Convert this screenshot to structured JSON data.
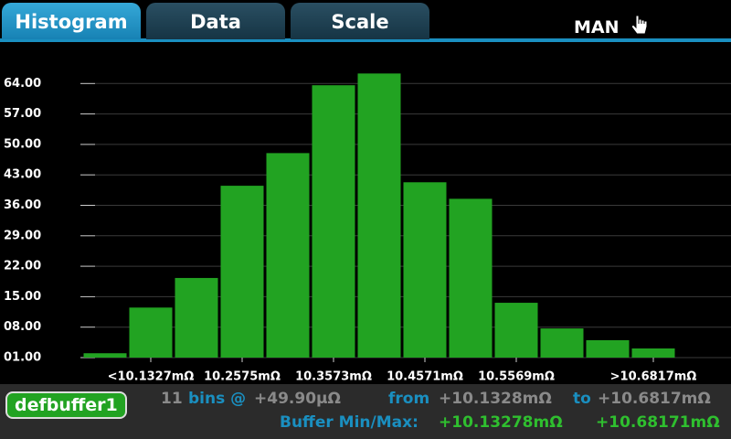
{
  "tabs": [
    "Histogram",
    "Data",
    "Scale"
  ],
  "mode": "MAN",
  "chart_data": {
    "type": "bar",
    "categories": [
      null,
      "<10.1327mΩ",
      null,
      "10.2575mΩ",
      null,
      "10.3573mΩ",
      null,
      "10.4571mΩ",
      null,
      "10.5569mΩ",
      null,
      null,
      ">10.6817mΩ"
    ],
    "values": [
      2,
      12.5,
      19.3,
      40.5,
      48,
      63.6,
      66.3,
      41.3,
      37.5,
      13.6,
      7.7,
      5,
      3.1
    ],
    "color": "#22a322",
    "ylim": [
      1,
      71
    ],
    "yticks": [
      {
        "value": 1,
        "label": "01.00"
      },
      {
        "value": 8,
        "label": "08.00"
      },
      {
        "value": 15,
        "label": "15.00"
      },
      {
        "value": 22,
        "label": "22.00"
      },
      {
        "value": 29,
        "label": "29.00"
      },
      {
        "value": 36,
        "label": "36.00"
      },
      {
        "value": 43,
        "label": "43.00"
      },
      {
        "value": 50,
        "label": "50.00"
      },
      {
        "value": 57,
        "label": "57.00"
      },
      {
        "value": 64,
        "label": "64.00"
      }
    ],
    "grid": true
  },
  "footer": {
    "buffer": "defbuffer1",
    "bins_count": "11",
    "bins_label": "bins @",
    "bin_width": "+49.90µΩ",
    "from_label": "from",
    "from_value": "+10.1328mΩ",
    "to_label": "to",
    "to_value": "+10.6817mΩ",
    "minmax_label": "Buffer Min/Max:",
    "min_value": "+10.13278mΩ",
    "max_value": "+10.68171mΩ"
  }
}
